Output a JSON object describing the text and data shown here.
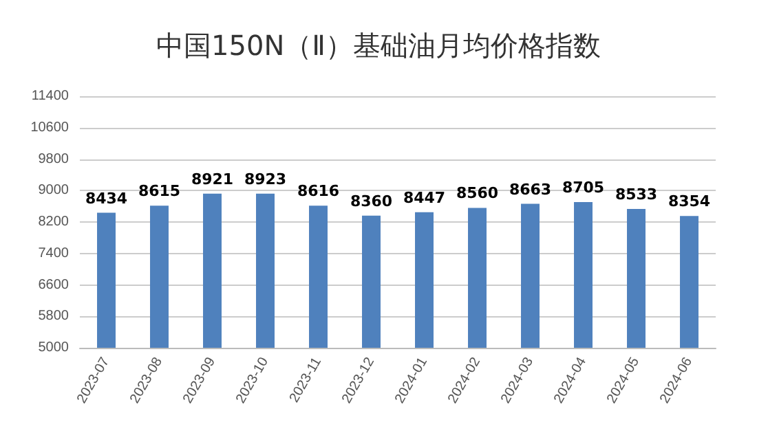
{
  "chart_data": {
    "type": "bar",
    "title": "中国150N（Ⅱ）基础油月均价格指数",
    "categories": [
      "2023-07",
      "2023-08",
      "2023-09",
      "2023-10",
      "2023-11",
      "2023-12",
      "2024-01",
      "2024-02",
      "2024-03",
      "2024-04",
      "2024-05",
      "2024-06"
    ],
    "values": [
      8434,
      8615,
      8921,
      8923,
      8616,
      8360,
      8447,
      8560,
      8663,
      8705,
      8533,
      8354
    ],
    "color": "#4f81bd",
    "ylim": [
      5000,
      11400
    ],
    "yticks": [
      5000,
      5800,
      6600,
      7400,
      8200,
      9000,
      9800,
      10600,
      11400
    ],
    "grid": "y",
    "data_labels": true
  }
}
